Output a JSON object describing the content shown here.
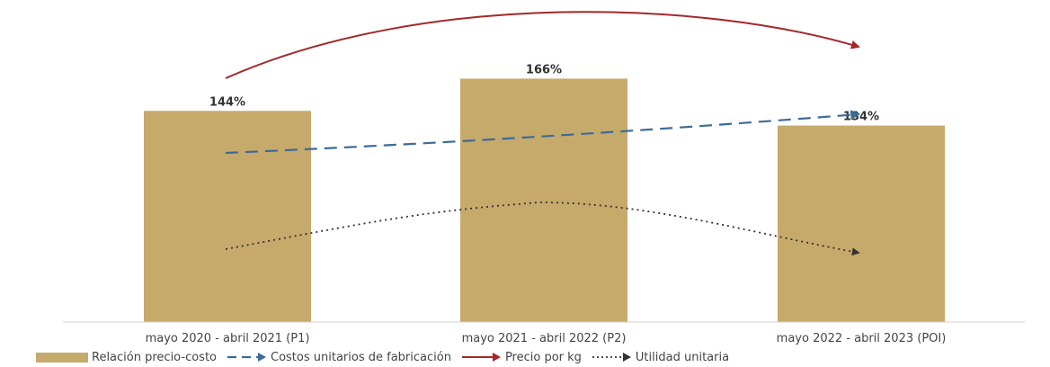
{
  "chart_data": {
    "type": "bar",
    "categories": [
      "mayo 2020 - abril 2021 (P1)",
      "mayo 2021 - abril 2022 (P2)",
      "mayo 2022 - abril 2023 (POI)"
    ],
    "series": [
      {
        "name": "Relación precio-costo",
        "type": "bar",
        "values": [
          144,
          166,
          134
        ],
        "labels": [
          "144%",
          "166%",
          "134%"
        ],
        "color": "#c6aa6c"
      },
      {
        "name": "Costos unitarios de fabricación",
        "type": "trend-arrow",
        "style": "dashed",
        "color": "#3b6b97"
      },
      {
        "name": "Precio por kg",
        "type": "trend-arrow",
        "style": "solid",
        "color": "#a3282b"
      },
      {
        "name": "Utilidad unitaria",
        "type": "trend-arrow",
        "style": "dotted",
        "color": "#333333"
      }
    ],
    "ylim": [
      0,
      200
    ],
    "grid": false,
    "legend_position": "bottom-left"
  }
}
